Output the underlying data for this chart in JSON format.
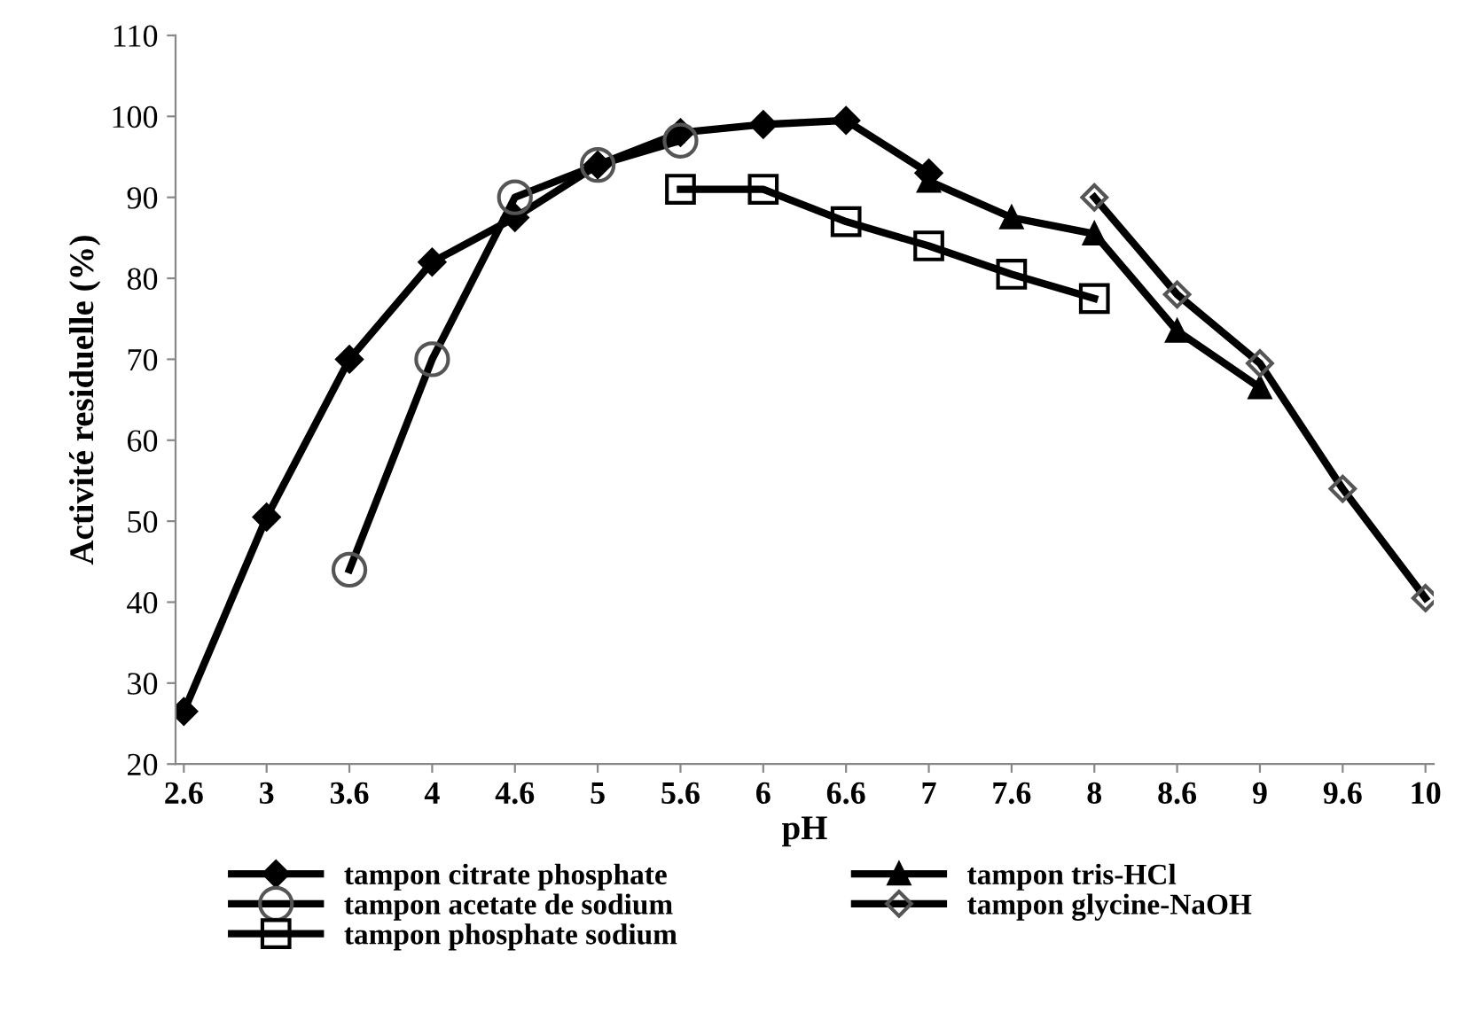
{
  "chart_data": {
    "type": "line",
    "xlabel": "pH",
    "ylabel": "Activité residuelle (%)",
    "categories": [
      "2.6",
      "3",
      "3.6",
      "4",
      "4.6",
      "5",
      "5.6",
      "6",
      "6.6",
      "7",
      "7.6",
      "8",
      "8.6",
      "9",
      "9.6",
      "10"
    ],
    "ylim": [
      20,
      110
    ],
    "yticks": [
      20,
      30,
      40,
      50,
      60,
      70,
      80,
      90,
      100,
      110
    ],
    "grid": false,
    "legend": "bottom",
    "line_style": "solid",
    "series": [
      {
        "name": "tampon citrate phosphate",
        "color": "#000000",
        "marker": "diamond",
        "values": [
          26.5,
          50.5,
          70,
          82,
          87.5,
          94,
          98,
          99,
          99.5,
          93,
          null,
          null,
          null,
          null,
          null,
          null
        ]
      },
      {
        "name": "tampon acetate de sodium",
        "color": "#000000",
        "marker": "circle",
        "values": [
          null,
          null,
          44,
          70,
          90,
          94,
          97,
          null,
          null,
          null,
          null,
          null,
          null,
          null,
          null,
          null
        ]
      },
      {
        "name": "tampon phosphate sodium",
        "color": "#000000",
        "marker": "square",
        "values": [
          null,
          null,
          null,
          null,
          null,
          null,
          91,
          91,
          87,
          84,
          80.5,
          77.5,
          null,
          null,
          null,
          null
        ]
      },
      {
        "name": "tampon tris-HCl",
        "color": "#000000",
        "marker": "triangle",
        "values": [
          null,
          null,
          null,
          null,
          null,
          null,
          null,
          null,
          null,
          92,
          87.5,
          85.5,
          73.5,
          66.5,
          null,
          null
        ]
      },
      {
        "name": "tampon glycine-NaOH",
        "color": "#000000",
        "marker": "diamond",
        "values": [
          null,
          null,
          null,
          null,
          null,
          null,
          null,
          null,
          null,
          null,
          null,
          90,
          78,
          69.5,
          54,
          40.5
        ]
      }
    ]
  }
}
